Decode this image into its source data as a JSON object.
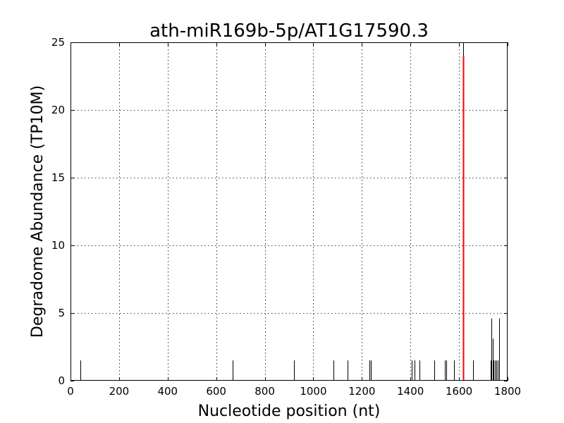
{
  "chart_data": {
    "type": "bar",
    "title": "ath-miR169b-5p/AT1G17590.3",
    "xlabel": "Nucleotide position (nt)",
    "ylabel": "Degradome Abundance (TP10M)",
    "xlim": [
      0,
      1800
    ],
    "ylim": [
      0,
      25
    ],
    "xticks": [
      0,
      200,
      400,
      600,
      800,
      1000,
      1200,
      1400,
      1600,
      1800
    ],
    "yticks": [
      0,
      5,
      10,
      15,
      20,
      25
    ],
    "grid": true,
    "series": [
      {
        "color": "#000000",
        "points": [
          {
            "x": 42,
            "y": 1.5
          },
          {
            "x": 667,
            "y": 1.5
          },
          {
            "x": 920,
            "y": 1.5
          },
          {
            "x": 1082,
            "y": 1.5
          },
          {
            "x": 1142,
            "y": 1.5
          },
          {
            "x": 1232,
            "y": 1.5
          },
          {
            "x": 1237,
            "y": 1.5
          },
          {
            "x": 1405,
            "y": 1.5
          },
          {
            "x": 1418,
            "y": 1.5
          },
          {
            "x": 1437,
            "y": 1.5
          },
          {
            "x": 1497,
            "y": 1.5
          },
          {
            "x": 1542,
            "y": 1.5
          },
          {
            "x": 1547,
            "y": 1.5
          },
          {
            "x": 1580,
            "y": 1.5
          },
          {
            "x": 1617,
            "y": 25
          },
          {
            "x": 1657,
            "y": 1.5
          },
          {
            "x": 1730,
            "y": 1.5
          },
          {
            "x": 1734,
            "y": 4.6
          },
          {
            "x": 1738,
            "y": 3.1
          },
          {
            "x": 1742,
            "y": 1.5
          },
          {
            "x": 1748,
            "y": 1.5
          },
          {
            "x": 1754,
            "y": 1.5
          },
          {
            "x": 1760,
            "y": 1.5
          },
          {
            "x": 1764,
            "y": 4.6
          }
        ]
      },
      {
        "color": "#ff0000",
        "points": [
          {
            "x": 1617,
            "y": 24
          }
        ]
      }
    ]
  }
}
